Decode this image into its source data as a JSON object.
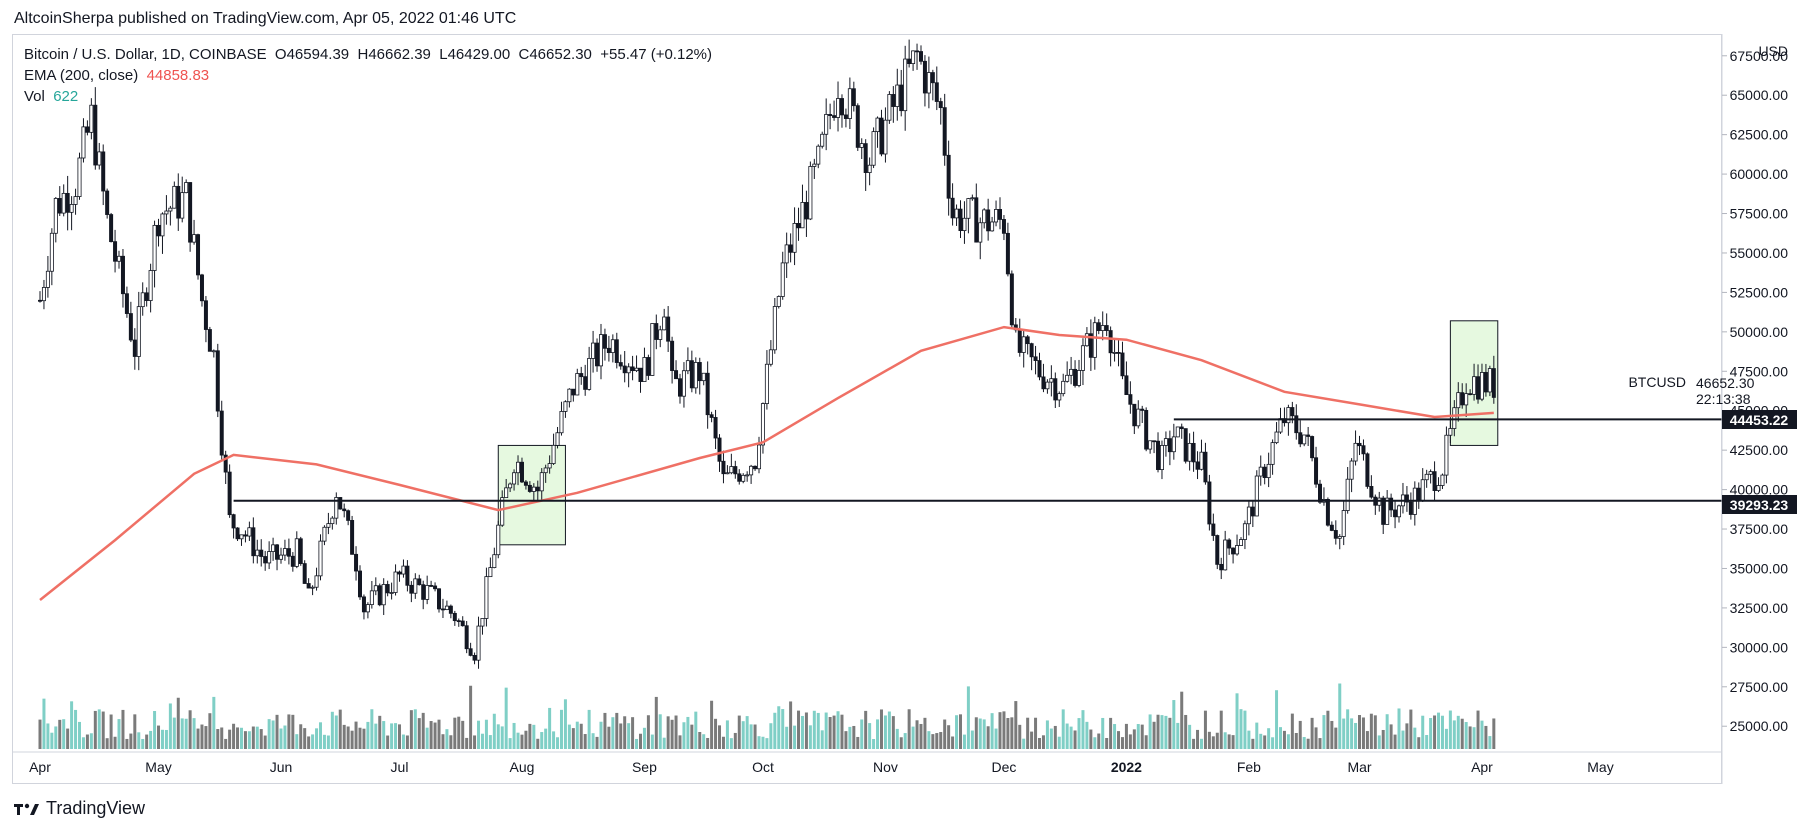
{
  "header": {
    "published": "AltcoinSherpa published on TradingView.com, Apr 05, 2022 01:46 UTC"
  },
  "legend": {
    "symbol": "Bitcoin / U.S. Dollar, 1D, COINBASE",
    "open": "O46594.39",
    "high": "H46662.39",
    "low": "L46429.00",
    "close": "C46652.30",
    "change": "+55.47 (+0.12%)",
    "ema_label": "EMA (200, close)",
    "ema_value": "44858.83",
    "vol_label": "Vol",
    "vol_value": "622"
  },
  "price_scale": {
    "currency": "USD",
    "symbol_label": "BTCUSD",
    "last_price": "46652.30",
    "countdown": "22:13:38",
    "level_1": "44453.22",
    "level_2": "39293.23"
  },
  "footer": {
    "brand": "TradingView"
  },
  "colors": {
    "ema": "#ef7065",
    "up_vol": "#7fcfc6",
    "down_vol": "#7a7a7a",
    "box_fill": "#e6f9e0",
    "candle": "#131722"
  },
  "chart_data": {
    "type": "candlestick",
    "y_axis": {
      "ticks": [
        25000,
        27500,
        30000,
        32500,
        35000,
        37500,
        40000,
        42500,
        45000,
        47500,
        50000,
        52500,
        55000,
        57500,
        60000,
        62500,
        65000,
        67500
      ],
      "range": [
        24000,
        68500
      ],
      "labels": [
        "25000.00",
        "27500.00",
        "30000.00",
        "32500.00",
        "35000.00",
        "37500.00",
        "40000.00",
        "42500.00",
        "45000.00",
        "47500.00",
        "50000.00",
        "52500.00",
        "55000.00",
        "57500.00",
        "60000.00",
        "62500.00",
        "65000.00",
        "67500.00"
      ]
    },
    "x_axis": {
      "labels": [
        "Apr",
        "May",
        "Jun",
        "Jul",
        "Aug",
        "Sep",
        "Oct",
        "Nov",
        "Dec",
        "2022",
        "Feb",
        "Mar",
        "Apr",
        "May"
      ]
    },
    "price_path": [
      [
        "2021-04-01",
        52000
      ],
      [
        "2021-04-05",
        58000
      ],
      [
        "2021-04-10",
        59500
      ],
      [
        "2021-04-14",
        63500
      ],
      [
        "2021-04-18",
        57000
      ],
      [
        "2021-04-25",
        49000
      ],
      [
        "2021-05-01",
        57500
      ],
      [
        "2021-05-08",
        58500
      ],
      [
        "2021-05-12",
        52000
      ],
      [
        "2021-05-15",
        48500
      ],
      [
        "2021-05-19",
        38000
      ],
      [
        "2021-05-22",
        37500
      ],
      [
        "2021-05-28",
        35500
      ],
      [
        "2021-06-05",
        36000
      ],
      [
        "2021-06-08",
        33000
      ],
      [
        "2021-06-15",
        40000
      ],
      [
        "2021-06-20",
        35500
      ],
      [
        "2021-06-22",
        32500
      ],
      [
        "2021-07-01",
        34500
      ],
      [
        "2021-07-08",
        33500
      ],
      [
        "2021-07-15",
        32000
      ],
      [
        "2021-07-20",
        29800
      ],
      [
        "2021-07-26",
        37500
      ],
      [
        "2021-07-30",
        42000
      ],
      [
        "2021-08-05",
        40000
      ],
      [
        "2021-08-14",
        46500
      ],
      [
        "2021-08-23",
        49500
      ],
      [
        "2021-09-01",
        47500
      ],
      [
        "2021-09-06",
        52000
      ],
      [
        "2021-09-08",
        46500
      ],
      [
        "2021-09-15",
        47500
      ],
      [
        "2021-09-21",
        40500
      ],
      [
        "2021-09-29",
        42000
      ],
      [
        "2021-10-06",
        54000
      ],
      [
        "2021-10-15",
        60500
      ],
      [
        "2021-10-20",
        66000
      ],
      [
        "2021-10-28",
        61000
      ],
      [
        "2021-11-09",
        67500
      ],
      [
        "2021-11-15",
        64000
      ],
      [
        "2021-11-18",
        57500
      ],
      [
        "2021-11-25",
        57000
      ],
      [
        "2021-12-01",
        57000
      ],
      [
        "2021-12-04",
        49000
      ],
      [
        "2021-12-10",
        47500
      ],
      [
        "2021-12-16",
        46500
      ],
      [
        "2021-12-27",
        51000
      ],
      [
        "2021-12-31",
        46500
      ],
      [
        "2022-01-06",
        43500
      ],
      [
        "2022-01-10",
        41800
      ],
      [
        "2022-01-13",
        43500
      ],
      [
        "2022-01-20",
        41500
      ],
      [
        "2022-01-24",
        35500
      ],
      [
        "2022-01-31",
        37500
      ],
      [
        "2022-02-05",
        41500
      ],
      [
        "2022-02-10",
        44500
      ],
      [
        "2022-02-15",
        43500
      ],
      [
        "2022-02-21",
        38500
      ],
      [
        "2022-02-24",
        37000
      ],
      [
        "2022-02-28",
        43000
      ],
      [
        "2022-03-07",
        38500
      ],
      [
        "2022-03-15",
        39500
      ],
      [
        "2022-03-22",
        41500
      ],
      [
        "2022-03-28",
        47000
      ],
      [
        "2022-04-04",
        46652
      ]
    ],
    "ema_path": [
      [
        "2021-04-01",
        33000
      ],
      [
        "2021-04-20",
        36800
      ],
      [
        "2021-05-10",
        41000
      ],
      [
        "2021-05-20",
        42200
      ],
      [
        "2021-06-10",
        41600
      ],
      [
        "2021-07-01",
        40300
      ],
      [
        "2021-07-26",
        38700
      ],
      [
        "2021-08-15",
        39800
      ],
      [
        "2021-09-15",
        42000
      ],
      [
        "2021-10-01",
        43000
      ],
      [
        "2021-10-20",
        45800
      ],
      [
        "2021-11-10",
        48800
      ],
      [
        "2021-12-01",
        50300
      ],
      [
        "2021-12-15",
        49800
      ],
      [
        "2022-01-01",
        49500
      ],
      [
        "2022-01-20",
        48200
      ],
      [
        "2022-02-10",
        46200
      ],
      [
        "2022-03-01",
        45400
      ],
      [
        "2022-03-20",
        44600
      ],
      [
        "2022-04-04",
        44859
      ]
    ],
    "horizontal_lines": [
      {
        "price": 44453.22,
        "from": "2022-01-13"
      },
      {
        "price": 39293.23,
        "from": "2021-05-20"
      }
    ],
    "boxes": [
      {
        "from": "2021-07-26",
        "to": "2021-08-12",
        "low": 36500,
        "high": 42800
      },
      {
        "from": "2022-03-24",
        "to": "2022-04-05",
        "low": 42800,
        "high": 50700
      }
    ]
  }
}
